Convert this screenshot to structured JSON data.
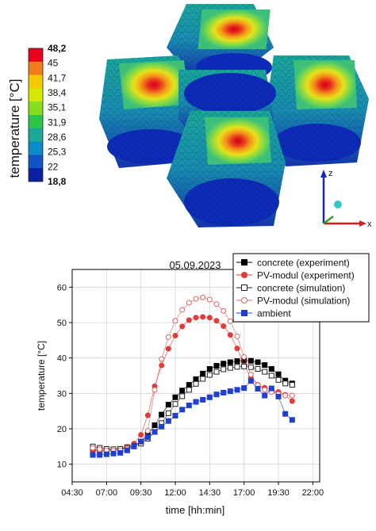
{
  "colorbar": {
    "label": "temperature [°C]",
    "ticks": [
      "48,2",
      "45",
      "41,7",
      "38,4",
      "35,1",
      "31,9",
      "28,6",
      "25,3",
      "22",
      "18,8"
    ],
    "bold_ticks": [
      "48,2",
      "18,8"
    ],
    "colors": [
      "#e8001c",
      "#f07c1a",
      "#f5c800",
      "#d6e800",
      "#86de1e",
      "#2cc44a",
      "#1ca79a",
      "#0f8ac8",
      "#1254c8",
      "#0b1fa0"
    ]
  },
  "model_axes": {
    "z": "z",
    "x": "x"
  },
  "chart_data": {
    "type": "scatter",
    "title": "05.09.2023",
    "xlabel": "time [hh:min]",
    "ylabel": "temperature [°C]",
    "xlim_hours": [
      4.5,
      22.5
    ],
    "ylim": [
      5,
      65
    ],
    "x_ticks": [
      "04:30",
      "07:00",
      "09:30",
      "12:00",
      "14:30",
      "17:00",
      "19:30",
      "22:00"
    ],
    "y_ticks": [
      "10",
      "20",
      "30",
      "40",
      "50",
      "60"
    ],
    "grid": true,
    "legend_position": "top-right",
    "x_hours": [
      6.0,
      6.5,
      7.0,
      7.5,
      8.0,
      8.5,
      9.0,
      9.5,
      10.0,
      10.5,
      11.0,
      11.5,
      12.0,
      12.5,
      13.0,
      13.5,
      14.0,
      14.5,
      15.0,
      15.5,
      16.0,
      16.5,
      17.0,
      17.5,
      18.0,
      18.5,
      19.0,
      19.5,
      20.0,
      20.5
    ],
    "series": [
      {
        "name": "concrete (experiment)",
        "color": "#000000",
        "marker": "square",
        "filled": true,
        "values": [
          14.2,
          13.9,
          13.9,
          14.1,
          14.3,
          14.8,
          15.3,
          16.3,
          18.3,
          21.0,
          24.0,
          26.8,
          28.9,
          30.8,
          32.4,
          34.0,
          35.6,
          36.9,
          37.8,
          38.4,
          38.8,
          39.1,
          39.3,
          39.2,
          38.8,
          38.0,
          36.9,
          35.4,
          33.6,
          32.8
        ]
      },
      {
        "name": "PV-modul (experiment)",
        "color": "#e03a3a",
        "marker": "circle",
        "filled": true,
        "values": [
          14.0,
          13.8,
          13.8,
          14.0,
          14.3,
          14.9,
          15.8,
          18.3,
          23.8,
          32.0,
          37.9,
          42.6,
          46.3,
          48.9,
          50.7,
          51.4,
          51.6,
          51.4,
          50.5,
          49.0,
          46.5,
          42.7,
          37.9,
          34.4,
          32.4,
          31.6,
          31.0,
          30.4,
          29.6,
          27.8
        ]
      },
      {
        "name": "concrete (simulation)",
        "color": "#222222",
        "marker": "square",
        "filled": false,
        "values": [
          15.0,
          14.6,
          14.3,
          14.2,
          14.3,
          14.6,
          15.1,
          15.8,
          17.2,
          19.1,
          21.6,
          24.4,
          27.0,
          29.2,
          31.0,
          32.7,
          34.1,
          35.2,
          36.1,
          36.8,
          37.2,
          37.5,
          37.6,
          37.4,
          36.9,
          36.1,
          35.0,
          33.8,
          32.8,
          32.4
        ]
      },
      {
        "name": "PV-modul (simulation)",
        "color": "#e06060",
        "marker": "circle",
        "filled": false,
        "values": [
          14.6,
          14.2,
          13.9,
          13.8,
          13.9,
          14.3,
          15.0,
          16.3,
          19.4,
          31.0,
          39.7,
          45.9,
          50.5,
          53.6,
          55.6,
          56.7,
          57.1,
          56.5,
          55.2,
          53.3,
          50.4,
          46.1,
          40.3,
          35.3,
          32.3,
          31.0,
          30.4,
          29.8,
          29.4,
          29.4
        ]
      },
      {
        "name": "ambient",
        "color": "#1f3fd0",
        "marker": "square",
        "filled": true,
        "values": [
          12.6,
          12.6,
          12.8,
          13.0,
          13.2,
          13.9,
          15.0,
          16.4,
          17.6,
          19.1,
          20.6,
          22.2,
          23.7,
          25.4,
          26.6,
          27.6,
          28.2,
          28.9,
          29.7,
          30.2,
          30.6,
          31.0,
          31.5,
          33.5,
          31.3,
          29.4,
          31.4,
          29.1,
          24.2,
          22.5
        ]
      }
    ]
  }
}
